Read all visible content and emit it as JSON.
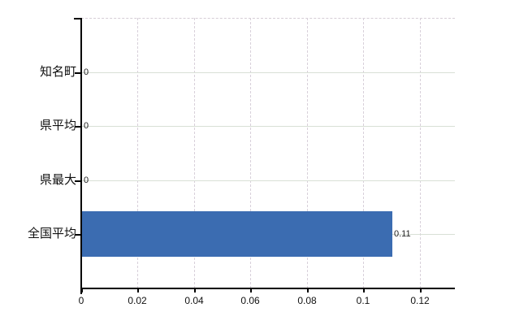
{
  "chart_data": {
    "type": "bar",
    "orientation": "horizontal",
    "title": "",
    "categories": [
      "知名町",
      "県平均",
      "県最大",
      "全国平均"
    ],
    "values": [
      0,
      0,
      0,
      0.11
    ],
    "value_labels": [
      "0",
      "0",
      "0",
      "0.11"
    ],
    "x_ticks": [
      0,
      0.02,
      0.04,
      0.06,
      0.08,
      0.1,
      0.12
    ],
    "x_tick_labels": [
      "0",
      "0.02",
      "0.04",
      "0.06",
      "0.08",
      "0.1",
      "0.12"
    ],
    "xlim": [
      0,
      0.1324
    ],
    "grid": true,
    "legend": "none",
    "colors": {
      "bar": "#3b6cb1",
      "axis": "#000000",
      "h_grid": "#d8e0d6",
      "v_grid": "#d8d0da",
      "top_border": "#d6cdd6",
      "label_text": "#111111",
      "value_text": "#222222",
      "background": "#ffffff"
    }
  }
}
